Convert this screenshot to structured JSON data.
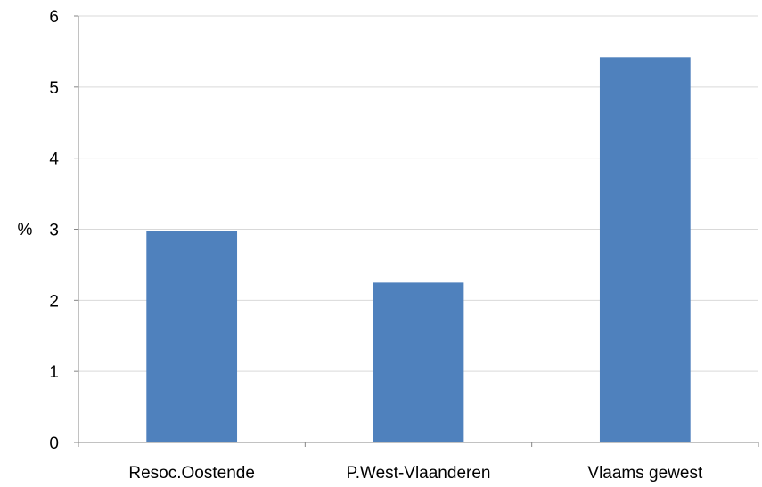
{
  "chart_data": {
    "type": "bar",
    "title": "",
    "xlabel": "",
    "ylabel": "%",
    "categories": [
      "Resoc.Oostende",
      "P.West-Vlaanderen",
      "Vlaams gewest"
    ],
    "values": [
      2.98,
      2.25,
      5.42
    ],
    "ylim": [
      0,
      6
    ],
    "yticks": [
      0,
      1,
      2,
      3,
      4,
      5,
      6
    ],
    "ytick_labels": [
      "0",
      "1",
      "2",
      "3",
      "4",
      "5",
      "6"
    ],
    "grid": true,
    "legend": "none",
    "colors": {
      "bar": "#4F81BD",
      "grid": "#D9D9D9",
      "axis": "#868686"
    }
  }
}
